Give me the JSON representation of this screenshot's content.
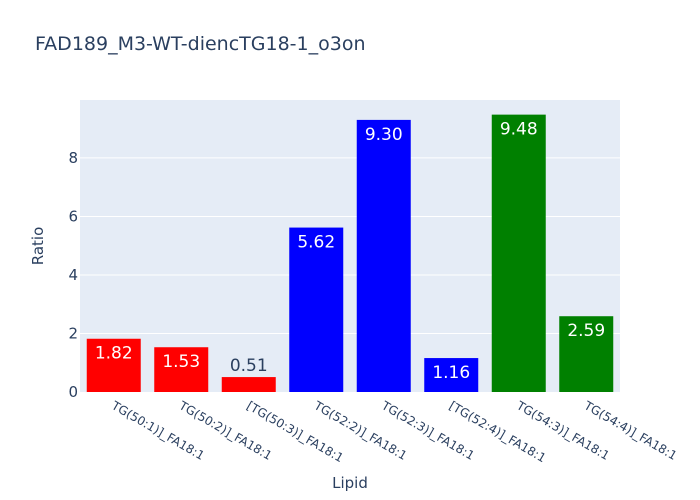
{
  "chart_data": {
    "type": "bar",
    "title": "FAD189_M3-WT-diencTG18-1_o3on",
    "xlabel": "Lipid",
    "ylabel": "Ratio",
    "categories": [
      "TG(50:1)]_FA18:1",
      "TG(50:2)]_FA18:1",
      "[TG(50:3)]_FA18:1",
      "TG(52:2)]_FA18:1",
      "TG(52:3)]_FA18:1",
      "[TG(52:4)]_FA18:1",
      "TG(54:3)]_FA18:1",
      "TG(54:4)]_FA18:1"
    ],
    "values": [
      1.82,
      1.53,
      0.51,
      5.62,
      9.3,
      1.16,
      9.48,
      2.59
    ],
    "value_labels": [
      "1.82",
      "1.53",
      "0.51",
      "5.62",
      "9.30",
      "1.16",
      "9.48",
      "2.59"
    ],
    "colors": [
      "#ff0000",
      "#ff0000",
      "#ff0000",
      "#0000ff",
      "#0000ff",
      "#0000ff",
      "#008000",
      "#008000"
    ],
    "ylim": [
      0,
      9.98
    ],
    "yticks": [
      0,
      2,
      4,
      6,
      8
    ],
    "grid": true,
    "legend": "none",
    "plot_background": "#e5ecf6"
  }
}
